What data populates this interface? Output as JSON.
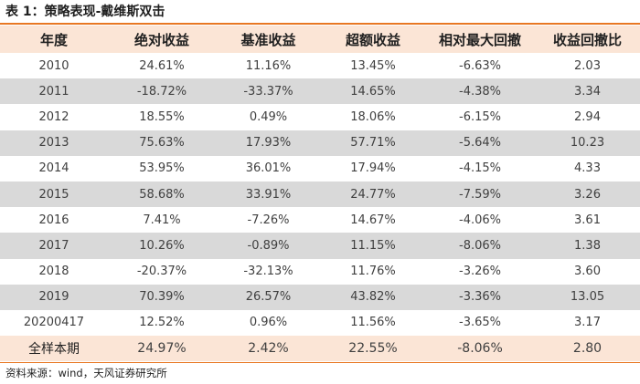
{
  "title": "表 1：策略表现-戴维斯双击",
  "source": "资料来源：wind，天风证券研究所",
  "colors": {
    "accent": "#e87722",
    "header_bg": "#fbe5d6",
    "stripe": "#d9d9d9"
  },
  "table": {
    "headers": [
      "年度",
      "绝对收益",
      "基准收益",
      "超额收益",
      "相对最大回撤",
      "收益回撤比"
    ],
    "rows": [
      [
        "2010",
        "24.61%",
        "11.16%",
        "13.45%",
        "-6.63%",
        "2.03"
      ],
      [
        "2011",
        "-18.72%",
        "-33.37%",
        "14.65%",
        "-4.38%",
        "3.34"
      ],
      [
        "2012",
        "18.55%",
        "0.49%",
        "18.06%",
        "-6.15%",
        "2.94"
      ],
      [
        "2013",
        "75.63%",
        "17.93%",
        "57.71%",
        "-5.64%",
        "10.23"
      ],
      [
        "2014",
        "53.95%",
        "36.01%",
        "17.94%",
        "-4.15%",
        "4.33"
      ],
      [
        "2015",
        "58.68%",
        "33.91%",
        "24.77%",
        "-7.59%",
        "3.26"
      ],
      [
        "2016",
        "7.41%",
        "-7.26%",
        "14.67%",
        "-4.06%",
        "3.61"
      ],
      [
        "2017",
        "10.26%",
        "-0.89%",
        "11.15%",
        "-8.06%",
        "1.38"
      ],
      [
        "2018",
        "-20.37%",
        "-32.13%",
        "11.76%",
        "-3.26%",
        "3.60"
      ],
      [
        "2019",
        "70.39%",
        "26.57%",
        "43.82%",
        "-3.36%",
        "13.05"
      ],
      [
        "20200417",
        "12.52%",
        "0.96%",
        "11.56%",
        "-3.65%",
        "3.17"
      ]
    ],
    "total": [
      "全样本期",
      "24.97%",
      "2.42%",
      "22.55%",
      "-8.06%",
      "2.80"
    ]
  }
}
